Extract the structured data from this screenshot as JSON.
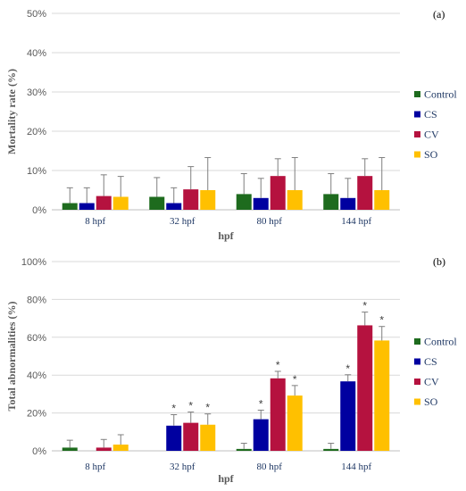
{
  "chart_data": [
    {
      "type": "bar",
      "panel_label": "(a)",
      "categories": [
        "8 hpf",
        "32 hpf",
        "80 hpf",
        "144 hpf"
      ],
      "xlabel": "hpf",
      "ylabel": "Mortality rate (%)",
      "ylim": [
        0,
        50
      ],
      "yticks": [
        0,
        10,
        20,
        30,
        40,
        50
      ],
      "ytick_labels": [
        "0%",
        "10%",
        "20%",
        "30%",
        "40%",
        "50%"
      ],
      "grid": true,
      "legend_position": "right",
      "series": [
        {
          "name": "Control",
          "color": "#1e6b1e",
          "values": [
            1.7,
            3.3,
            4.0,
            4.0
          ],
          "errors": [
            3.9,
            4.9,
            5.2,
            5.2
          ],
          "significant": [
            false,
            false,
            false,
            false
          ]
        },
        {
          "name": "CS",
          "color": "#0000a0",
          "values": [
            1.7,
            1.7,
            3.0,
            3.0
          ],
          "errors": [
            3.9,
            3.9,
            5.0,
            5.0
          ],
          "significant": [
            false,
            false,
            false,
            false
          ]
        },
        {
          "name": "CV",
          "color": "#b5123f",
          "values": [
            3.5,
            5.2,
            8.6,
            8.6
          ],
          "errors": [
            5.4,
            5.8,
            4.4,
            4.4
          ],
          "significant": [
            false,
            false,
            false,
            false
          ]
        },
        {
          "name": "SO",
          "color": "#ffc000",
          "values": [
            3.3,
            5.0,
            5.0,
            5.0
          ],
          "errors": [
            5.2,
            8.3,
            8.3,
            8.3
          ],
          "significant": [
            false,
            false,
            false,
            false
          ]
        }
      ]
    },
    {
      "type": "bar",
      "panel_label": "(b)",
      "categories": [
        "8 hpf",
        "32 hpf",
        "80 hpf",
        "144 hpf"
      ],
      "xlabel": "hpf",
      "ylabel": "Total abnormalities (%)",
      "ylim": [
        0,
        100
      ],
      "yticks": [
        0,
        20,
        40,
        60,
        80,
        100
      ],
      "ytick_labels": [
        "0%",
        "20%",
        "40%",
        "60%",
        "80%",
        "100%"
      ],
      "grid": true,
      "legend_position": "right",
      "significance_marker": "*",
      "series": [
        {
          "name": "Control",
          "color": "#1e6b1e",
          "values": [
            1.7,
            0,
            1.0,
            1.0
          ],
          "errors": [
            3.9,
            0,
            3.0,
            3.0
          ],
          "significant": [
            false,
            false,
            false,
            false
          ]
        },
        {
          "name": "CS",
          "color": "#0000a0",
          "values": [
            0,
            13.3,
            16.7,
            36.7
          ],
          "errors": [
            0,
            5.8,
            4.8,
            3.5
          ],
          "significant": [
            false,
            true,
            true,
            true
          ]
        },
        {
          "name": "CV",
          "color": "#b5123f",
          "values": [
            1.7,
            14.8,
            38.3,
            66.3
          ],
          "errors": [
            4.3,
            5.7,
            3.7,
            7.0
          ],
          "significant": [
            false,
            true,
            true,
            true
          ]
        },
        {
          "name": "SO",
          "color": "#ffc000",
          "values": [
            3.3,
            13.8,
            29.2,
            58.3
          ],
          "errors": [
            5.2,
            5.7,
            5.3,
            7.4
          ],
          "significant": [
            false,
            true,
            true,
            true
          ]
        }
      ]
    }
  ]
}
